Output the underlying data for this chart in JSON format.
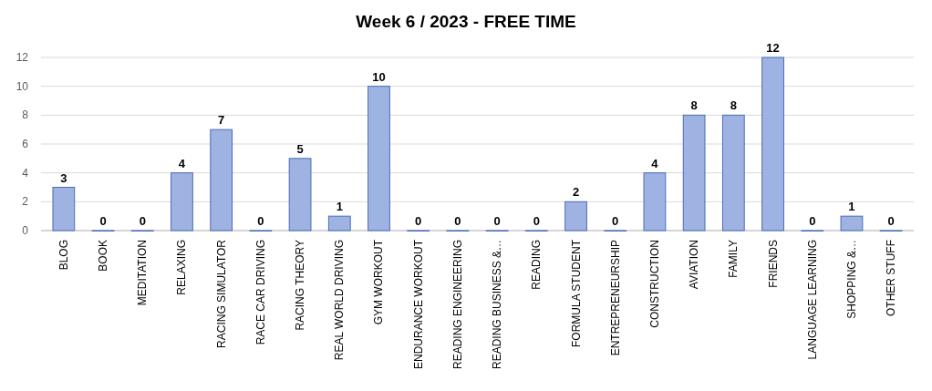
{
  "chart_data": {
    "type": "bar",
    "title": "Week 6 / 2023 - FREE TIME",
    "categories": [
      "BLOG",
      "BOOK",
      "MEDITATION",
      "RELAXING",
      "RACING SIMULATOR",
      "RACE CAR DRIVING",
      "RACING THEORY",
      "REAL WORLD DRIVING",
      "GYM WORKOUT",
      "ENDURANCE WORKOUT",
      "READING ENGINEERING",
      "READING BUSINESS &…",
      "READING",
      "FORMULA STUDENT",
      "ENTREPRENEURSHIP",
      "CONSTRUCTION",
      "AVIATION",
      "FAMILY",
      "FRIENDS",
      "LANGUAGE LEARNING",
      "SHOPPING &…",
      "OTHER STUFF"
    ],
    "values": [
      3,
      0,
      0,
      4,
      7,
      0,
      5,
      1,
      10,
      0,
      0,
      0,
      0,
      2,
      0,
      4,
      8,
      8,
      12,
      0,
      1,
      0
    ],
    "color": "#9fb3e3",
    "ylim": [
      0,
      12
    ],
    "yticks": [
      0,
      2,
      4,
      6,
      8,
      10,
      12
    ],
    "grid": "y",
    "data_labels": true
  }
}
